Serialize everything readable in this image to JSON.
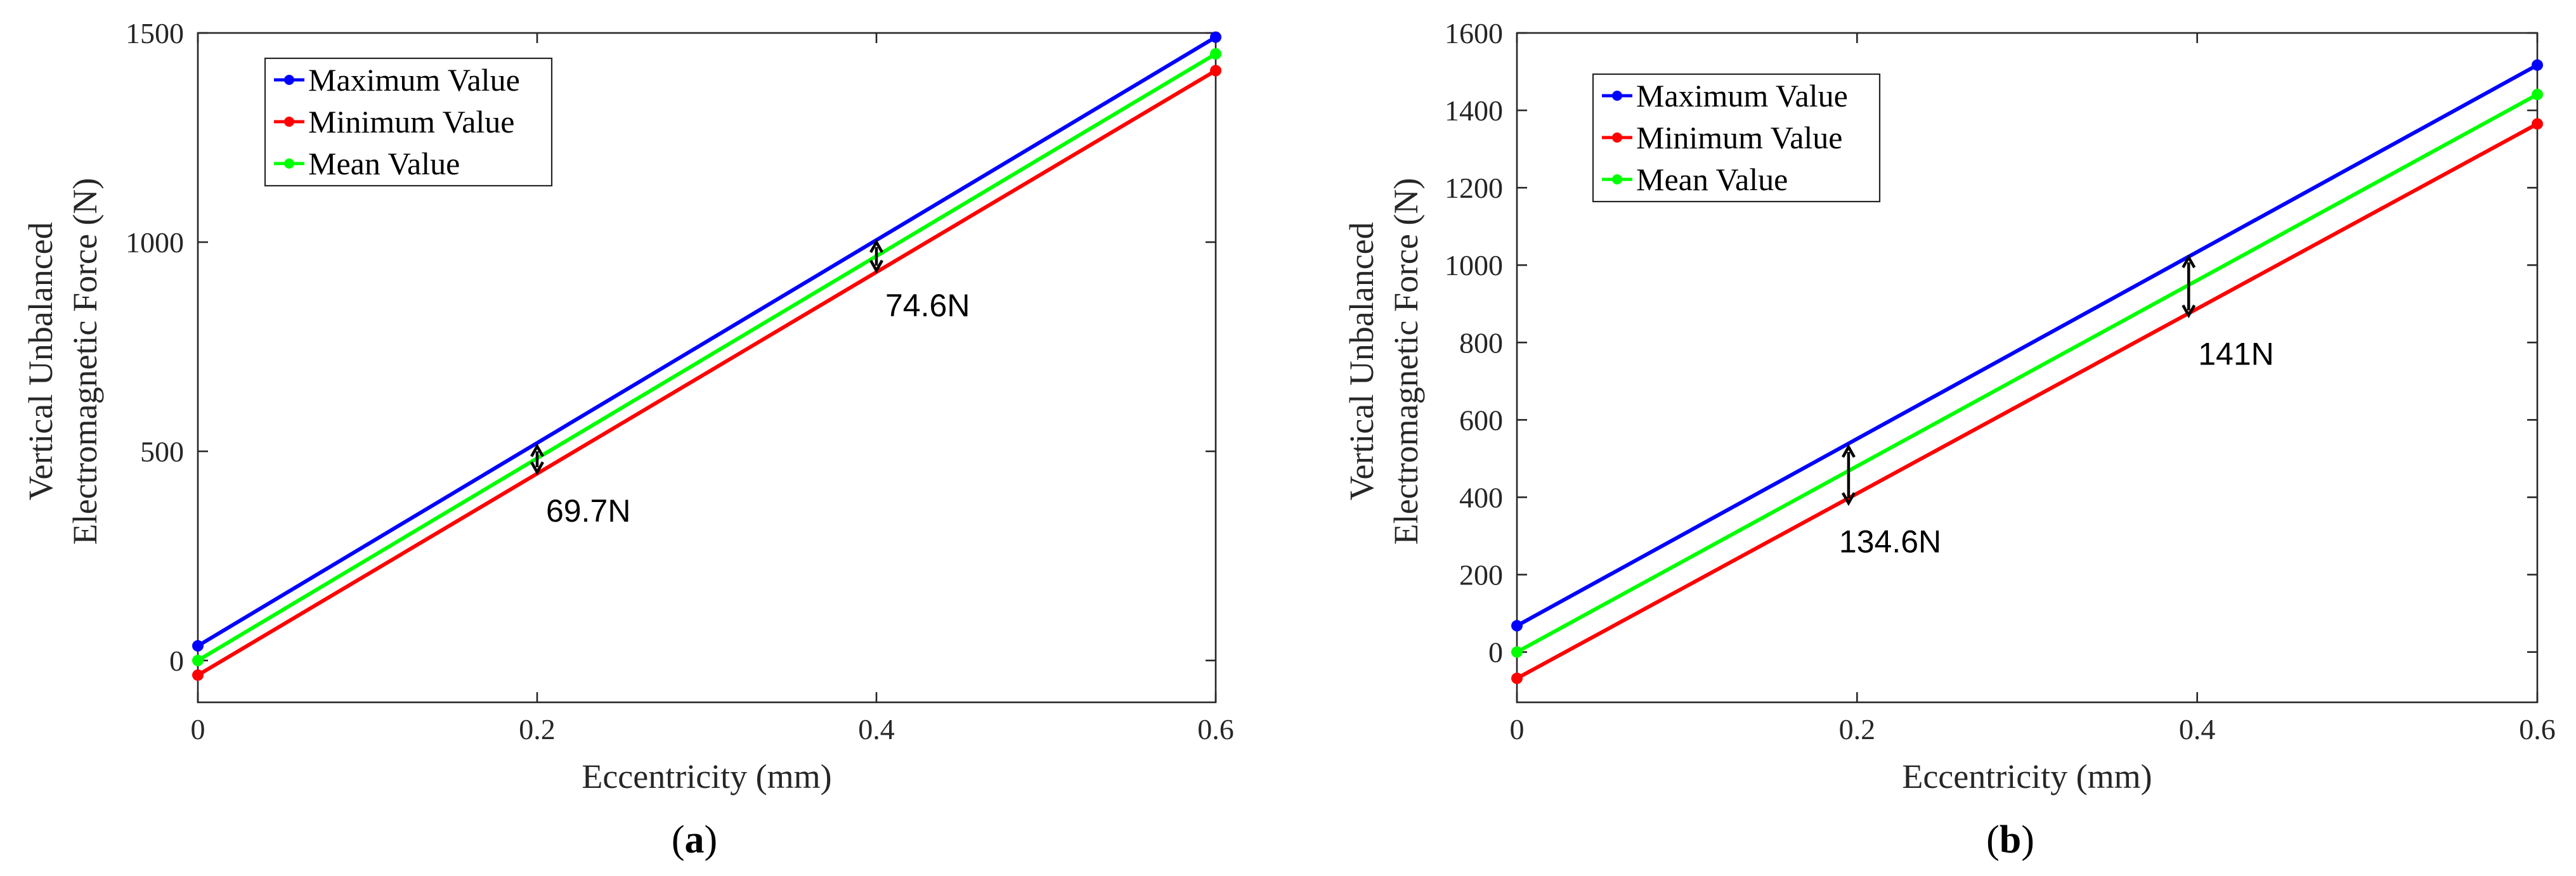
{
  "chart_data": [
    {
      "type": "line",
      "panel_label": "a",
      "xlabel": "Eccentricity (mm)",
      "ylabel_lines": [
        "Vertical Unbalanced",
        "Electromagnetic Force (N)"
      ],
      "xlim": [
        0,
        0.6
      ],
      "ylim": [
        -100,
        1500
      ],
      "xticks": [
        0,
        0.2,
        0.4,
        0.6
      ],
      "xtick_labels": [
        "0",
        "0.2",
        "0.4",
        "0.6"
      ],
      "yticks": [
        0,
        500,
        1000,
        1500
      ],
      "ytick_labels": [
        "0",
        "500",
        "1000",
        "1500"
      ],
      "legend_position": "top-left",
      "x": [
        0,
        0.6
      ],
      "series": [
        {
          "name": "Maximum Value",
          "color": "#0000ff",
          "values": [
            35,
            1490
          ]
        },
        {
          "name": "Minimum Value",
          "color": "#ff0000",
          "values": [
            -35,
            1410
          ]
        },
        {
          "name": "Mean Value",
          "color": "#00ff00",
          "values": [
            0,
            1450
          ]
        }
      ],
      "annotations": [
        {
          "text": "69.7N",
          "x": 0.2,
          "y_top": 512,
          "y_bottom": 450
        },
        {
          "text": "74.6N",
          "x": 0.4,
          "y_top": 1000,
          "y_bottom": 932
        }
      ]
    },
    {
      "type": "line",
      "panel_label": "b",
      "xlabel": "Eccentricity (mm)",
      "ylabel_lines": [
        "Vertical Unbalanced",
        "Electromagnetic Force (N)"
      ],
      "xlim": [
        0,
        0.6
      ],
      "ylim": [
        -130,
        1600
      ],
      "xticks": [
        0,
        0.2,
        0.4,
        0.6
      ],
      "xtick_labels": [
        "0",
        "0.2",
        "0.4",
        "0.6"
      ],
      "yticks": [
        0,
        200,
        400,
        600,
        800,
        1000,
        1200,
        1400,
        1600
      ],
      "ytick_labels": [
        "0",
        "200",
        "400",
        "600",
        "800",
        "1000",
        "1200",
        "1400",
        "1600"
      ],
      "legend_position": "top-left",
      "x": [
        0,
        0.6
      ],
      "series": [
        {
          "name": "Maximum Value",
          "color": "#0000ff",
          "values": [
            68,
            1517
          ]
        },
        {
          "name": "Minimum Value",
          "color": "#ff0000",
          "values": [
            -68,
            1365
          ]
        },
        {
          "name": "Mean Value",
          "color": "#00ff00",
          "values": [
            0,
            1441
          ]
        }
      ],
      "annotations": [
        {
          "text": "134.6N",
          "x": 0.195,
          "y_top": 530,
          "y_bottom": 385
        },
        {
          "text": "141N",
          "x": 0.395,
          "y_top": 1020,
          "y_bottom": 870
        }
      ]
    }
  ]
}
